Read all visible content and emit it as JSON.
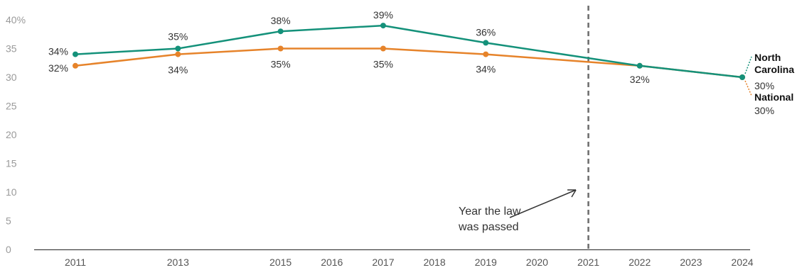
{
  "chart_data": {
    "type": "line",
    "title": "",
    "xlabel": "",
    "ylabel": "",
    "ylim": [
      0,
      40
    ],
    "yticks": [
      "0",
      "5",
      "10",
      "15",
      "20",
      "25",
      "30",
      "35",
      "40%"
    ],
    "xticks": [
      "2011",
      "2013",
      "2015",
      "2016",
      "2017",
      "2018",
      "2019",
      "2020",
      "2021",
      "2022",
      "2023",
      "2024"
    ],
    "grid": false,
    "series": [
      {
        "name_lines": [
          "North",
          "Carolina"
        ],
        "value_label": "30%",
        "color": "#14917a",
        "x": [
          2011,
          2013,
          2015,
          2017,
          2019,
          2022,
          2024
        ],
        "values": [
          34,
          35,
          38,
          39,
          36,
          32,
          30
        ],
        "labels": [
          "34%",
          "35%",
          "38%",
          "39%",
          "36%",
          "",
          ""
        ]
      },
      {
        "name_lines": [
          "National"
        ],
        "value_label": "30%",
        "color": "#e6832a",
        "x": [
          2011,
          2013,
          2015,
          2017,
          2019,
          2022,
          2024
        ],
        "values": [
          32,
          34,
          35,
          35,
          34,
          32,
          30
        ],
        "labels": [
          "32%",
          "34%",
          "35%",
          "35%",
          "34%",
          "32%",
          ""
        ]
      }
    ],
    "annotation": {
      "x": 2021,
      "lines": [
        "Year the law",
        "was passed"
      ]
    }
  }
}
